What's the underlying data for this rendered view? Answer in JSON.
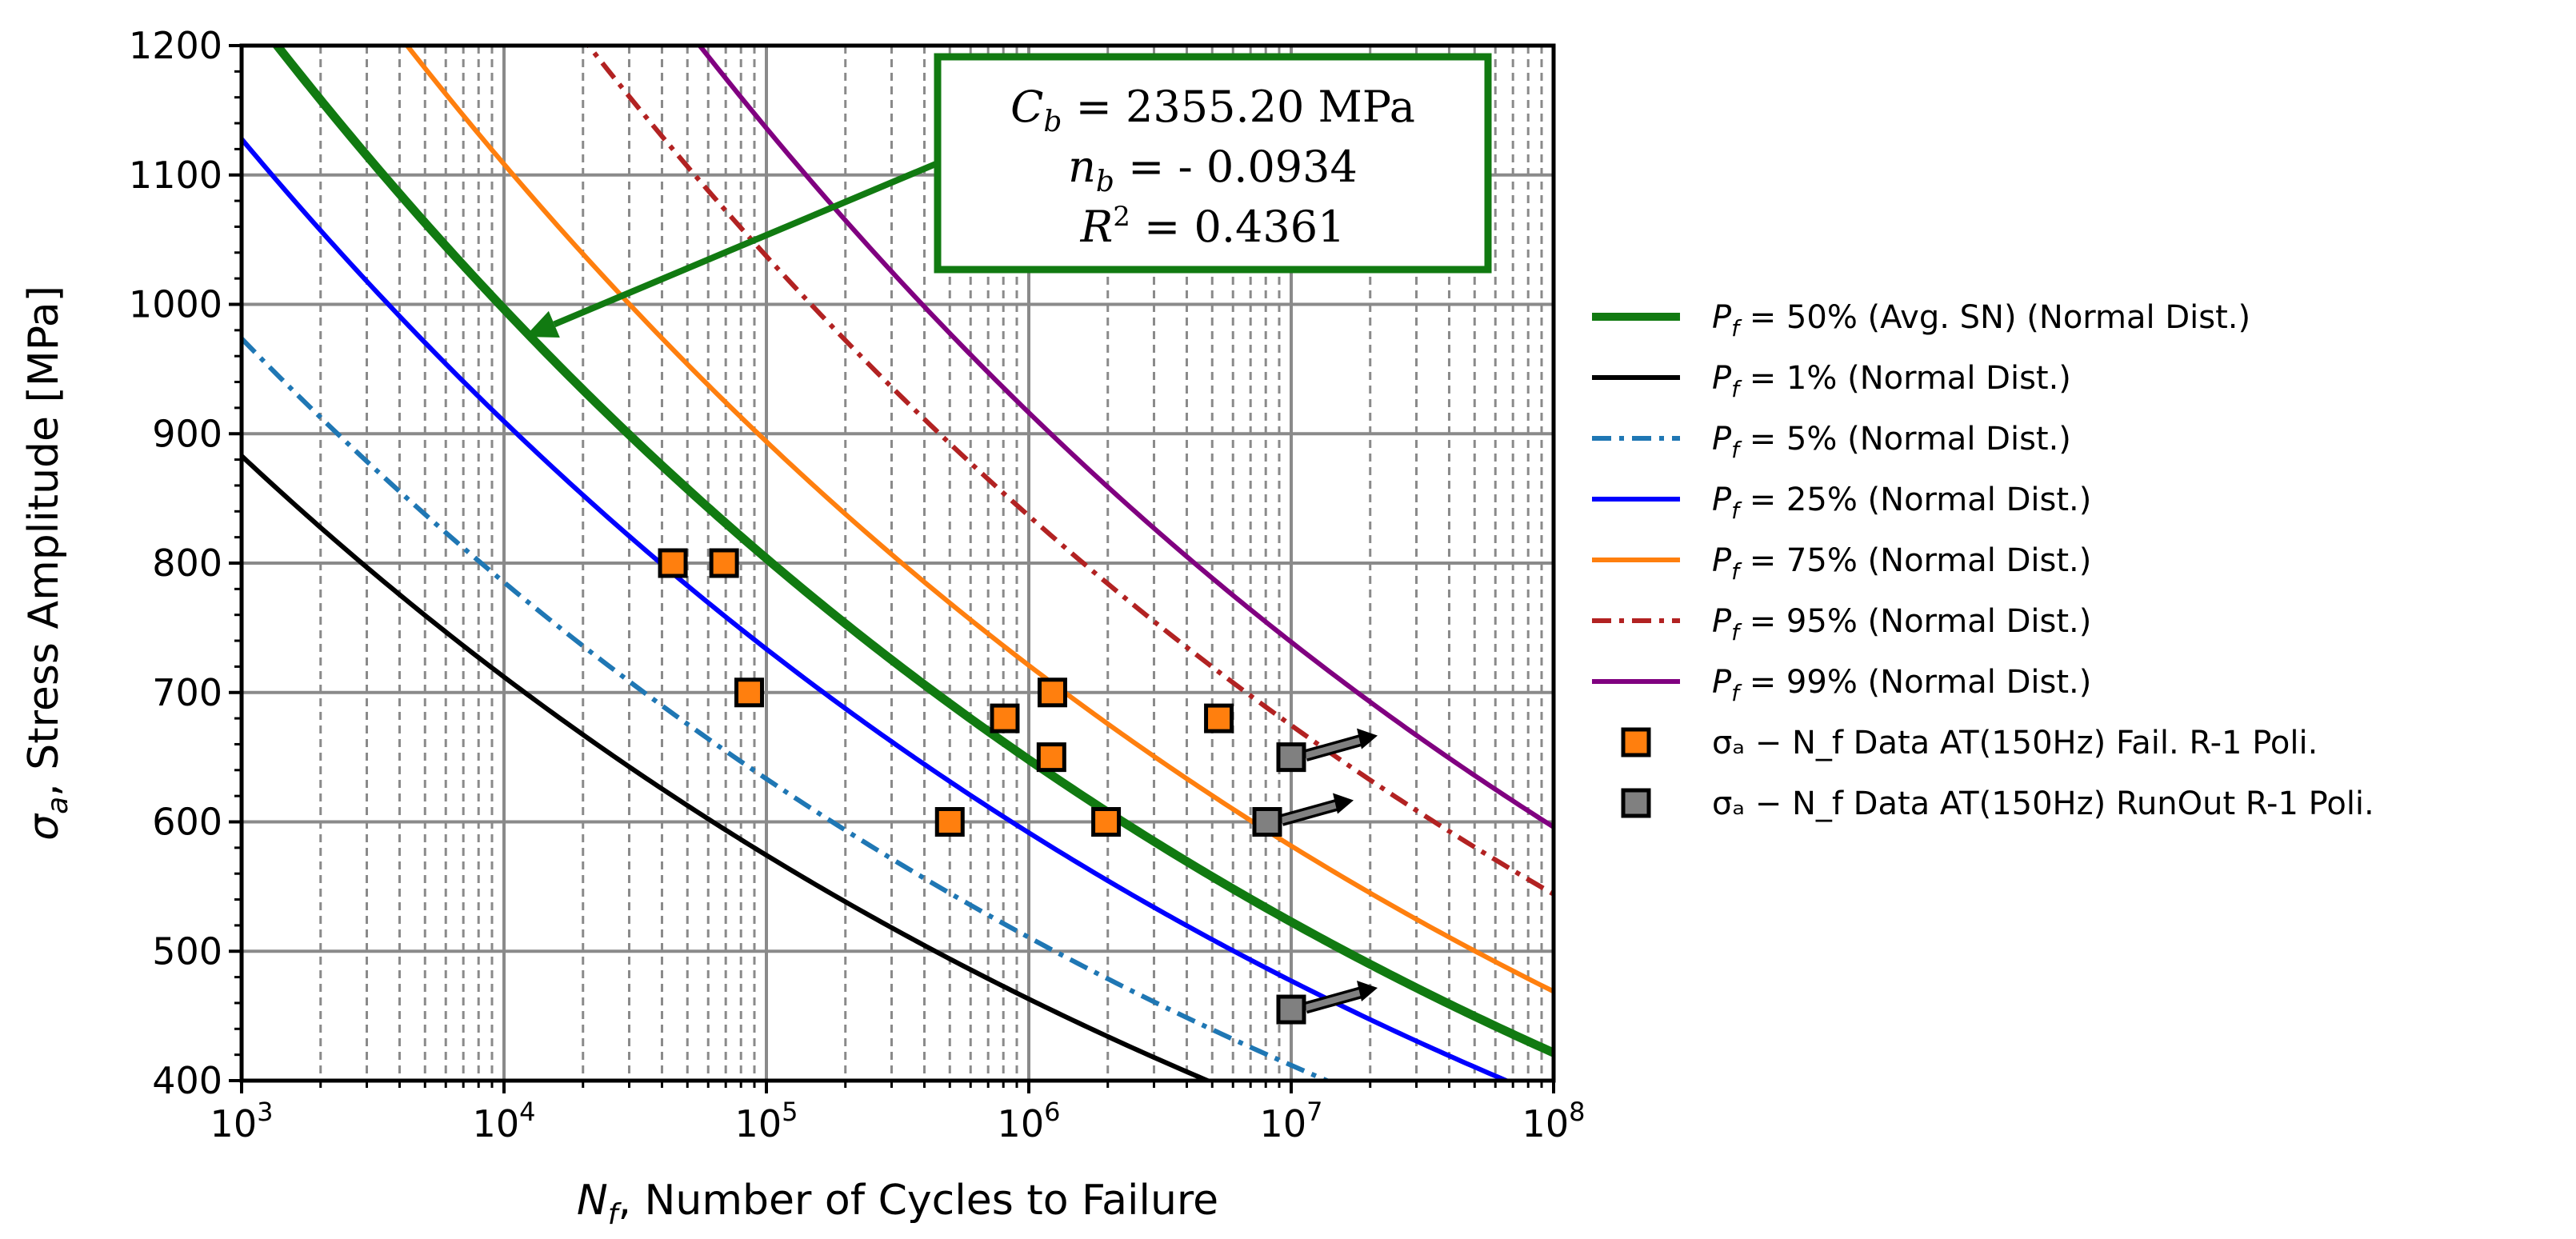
{
  "chart_data": {
    "type": "line",
    "title": "",
    "xlabel_symbol": "N",
    "xlabel_sub": "f",
    "xlabel_rest": ", Number of Cycles to Failure",
    "ylabel_symbol": "σ",
    "ylabel_sub": "a",
    "ylabel_rest": ", Stress Amplitude [MPa]",
    "xscale": "log",
    "xlim": [
      1000,
      100000000
    ],
    "ylim": [
      400,
      1200
    ],
    "grid": true,
    "legend_position": "right",
    "x_ticks": [
      {
        "base": "10",
        "exp": "3"
      },
      {
        "base": "10",
        "exp": "4"
      },
      {
        "base": "10",
        "exp": "5"
      },
      {
        "base": "10",
        "exp": "6"
      },
      {
        "base": "10",
        "exp": "7"
      },
      {
        "base": "10",
        "exp": "8"
      }
    ],
    "y_ticks": [
      "400",
      "500",
      "600",
      "700",
      "800",
      "900",
      "1000",
      "1100",
      "1200"
    ],
    "annotation": {
      "line1_sym": "C",
      "line1_sub": "b",
      "line1_rest": " = 2355.20 MPa",
      "line2_sym": "n",
      "line2_sub": "b",
      "line2_rest": " = - 0.0934",
      "line3_sym": "R",
      "line3_sup": "2",
      "line3_rest": " = 0.4361",
      "border_color": "#117a11",
      "arrow_color": "#117a11",
      "arrow_target_x": 12000,
      "arrow_target_y": 975
    },
    "series": [
      {
        "name": "P_f = 50% (Avg. SN) (Normal Dist.)",
        "legend_sym": "P",
        "legend_sub": "f",
        "legend_rest": " = 50% (Avg. SN) (Normal Dist.)",
        "C": 2355.2,
        "n": -0.0934,
        "color": "#117a11",
        "style": "solid",
        "width": "thick"
      },
      {
        "name": "P_f = 1% (Normal Dist.)",
        "legend_sym": "P",
        "legend_sub": "f",
        "legend_rest": " = 1% (Normal Dist.)",
        "C": 1683,
        "n": -0.0934,
        "color": "#000000",
        "style": "solid",
        "width": "normal"
      },
      {
        "name": "P_f = 5% (Normal Dist.)",
        "legend_sym": "P",
        "legend_sub": "f",
        "legend_rest": " = 5% (Normal Dist.)",
        "C": 1856,
        "n": -0.0934,
        "color": "#1f77b4",
        "style": "dashdot",
        "width": "normal"
      },
      {
        "name": "P_f = 25% (Normal Dist.)",
        "legend_sym": "P",
        "legend_sub": "f",
        "legend_rest": " = 25% (Normal Dist.)",
        "C": 2150,
        "n": -0.0934,
        "color": "#0000ff",
        "style": "solid",
        "width": "normal"
      },
      {
        "name": "P_f = 75% (Normal Dist.)",
        "legend_sym": "P",
        "legend_sub": "f",
        "legend_rest": " = 75% (Normal Dist.)",
        "C": 2620,
        "n": -0.0934,
        "color": "#ff7f0e",
        "style": "solid",
        "width": "normal"
      },
      {
        "name": "P_f = 95% (Normal Dist.)",
        "legend_sym": "P",
        "legend_sub": "f",
        "legend_rest": " = 95% (Normal Dist.)",
        "C": 3040,
        "n": -0.0934,
        "color": "#b22222",
        "style": "dashdot",
        "width": "normal"
      },
      {
        "name": "P_f = 99% (Normal Dist.)",
        "legend_sym": "P",
        "legend_sub": "f",
        "legend_rest": " = 99% (Normal Dist.)",
        "C": 3330,
        "n": -0.0934,
        "color": "#800080",
        "style": "solid",
        "width": "normal"
      }
    ],
    "scatter": [
      {
        "name": "σa − Nf Data AT(150Hz) Fail. R-1 Poli.",
        "legend_text": "σₐ − N_f Data  AT(150Hz) Fail. R-1 Poli.",
        "color": "#ff7f0e",
        "points": [
          [
            44000,
            800
          ],
          [
            69000,
            800
          ],
          [
            86000,
            700
          ],
          [
            500000,
            600
          ],
          [
            810000,
            680
          ],
          [
            1230000,
            700
          ],
          [
            1220000,
            650
          ],
          [
            1970000,
            600
          ],
          [
            5300000,
            680
          ]
        ]
      },
      {
        "name": "σa − Nf Data AT(150Hz) RunOut R-1 Poli.",
        "legend_text": "σₐ − N_f Data AT(150Hz) RunOut  R-1 Poli.",
        "color": "#808080",
        "runout": true,
        "points": [
          [
            10000000,
            650
          ],
          [
            8100000,
            600
          ],
          [
            10000000,
            455
          ]
        ]
      }
    ]
  }
}
